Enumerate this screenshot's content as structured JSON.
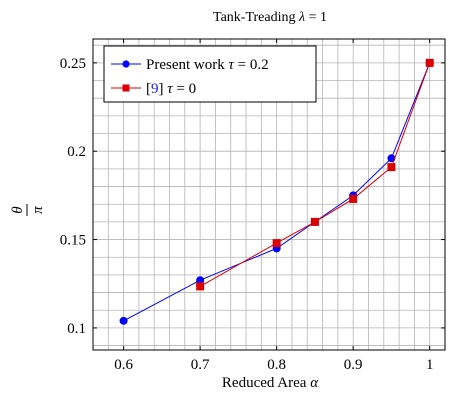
{
  "chart_data": {
    "type": "line",
    "title_prefix": "Tank-Treading ",
    "title_symbol": "λ",
    "title_suffix": " = 1",
    "xlabel_prefix": "Reduced Area ",
    "xlabel_symbol": "α",
    "ylabel_num": "θ",
    "ylabel_den": "π",
    "xlim": [
      0.56,
      1.02
    ],
    "ylim": [
      0.0875,
      0.2635
    ],
    "x_ticks": [
      0.6,
      0.7,
      0.8,
      0.9,
      1.0
    ],
    "x_tick_labels": [
      "0.6",
      "0.7",
      "0.8",
      "0.9",
      "1"
    ],
    "y_ticks": [
      0.1,
      0.15,
      0.2,
      0.25
    ],
    "y_tick_labels": [
      "0.1",
      "0.15",
      "0.2",
      "0.25"
    ],
    "grid": true,
    "legend_position": "top-left",
    "series": [
      {
        "name_text": "Present work ",
        "name_symbol": "τ",
        "name_value": " = 0.2",
        "color": "#0000ff",
        "marker": "circle",
        "x": [
          0.6,
          0.7,
          0.8,
          0.85,
          0.9,
          0.95,
          1.0
        ],
        "y": [
          0.104,
          0.127,
          0.145,
          0.16,
          0.175,
          0.196,
          0.25
        ]
      },
      {
        "name_ref": "9",
        "name_symbol": "τ",
        "name_value": " = 0",
        "color": "#dd0000",
        "marker": "square",
        "x": [
          0.7,
          0.8,
          0.85,
          0.9,
          0.95,
          1.0
        ],
        "y": [
          0.1235,
          0.148,
          0.16,
          0.173,
          0.191,
          0.25
        ]
      }
    ]
  }
}
